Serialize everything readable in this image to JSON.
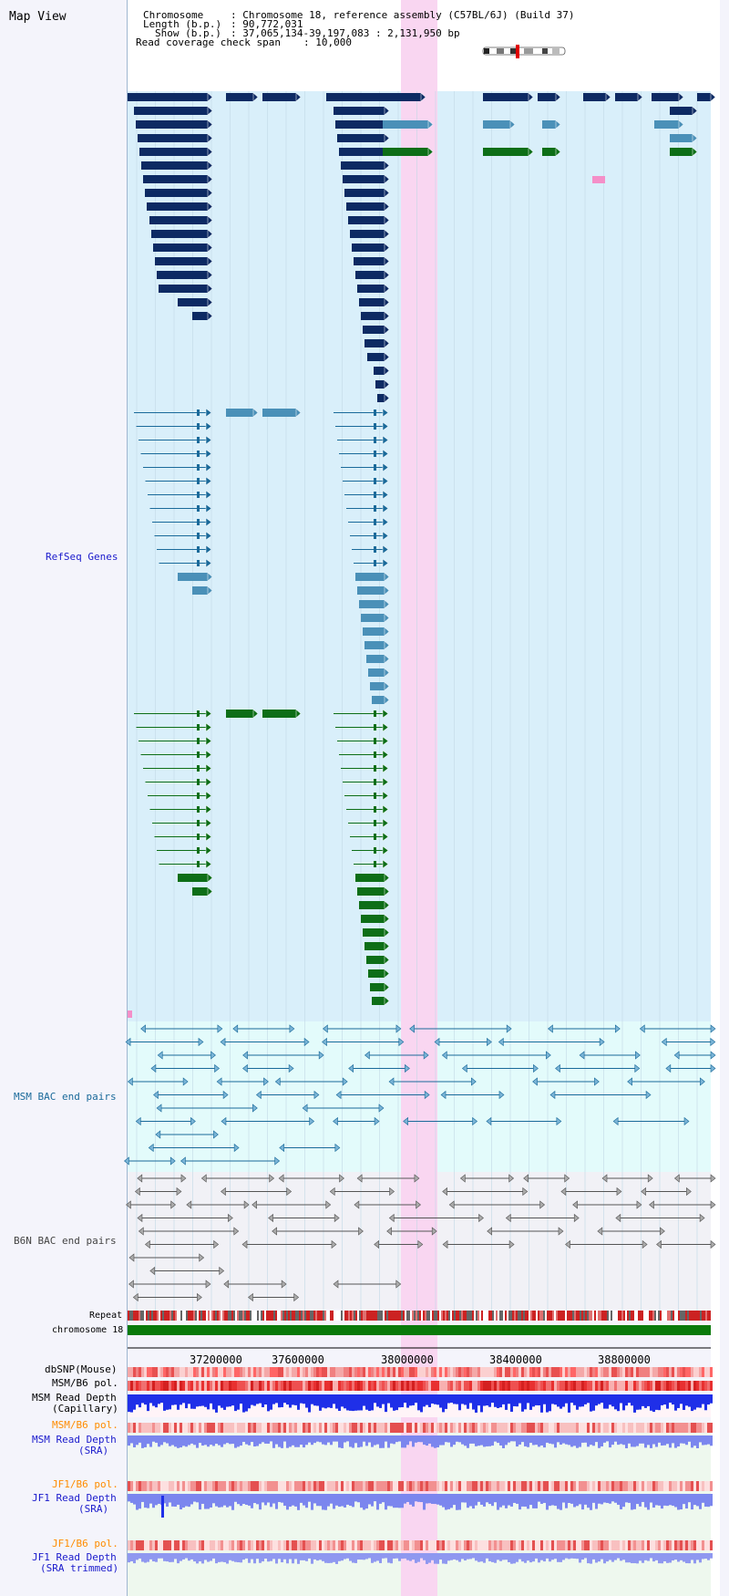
{
  "app": {
    "title": "Map View"
  },
  "header": {
    "chromosome_key": "Chromosome",
    "chromosome_value": ": Chromosome 18, reference assembly (C57BL/6J) (Build 37)",
    "length_key": "Length (b.p.)",
    "length_value": ": 90,772,031",
    "show_key": "Show (b.p.)",
    "show_value": ": 37,065,134-39,197,083 : 2,131,950 bp",
    "coverage_key": "Read coverage check span",
    "coverage_value": ": 10,000"
  },
  "tracks": {
    "refseq": "RefSeq Genes",
    "msm_bac": "MSM BAC end pairs",
    "b6n_bac": "B6N BAC end pairs",
    "repeat": "Repeat",
    "chrom": "chromosome 18",
    "dbsnp": "dbSNP(Mouse)",
    "msm_b6_pol_1": "MSM/B6 pol.",
    "msm_read_depth_cap_1": "MSM Read Depth",
    "msm_read_depth_cap_2": "(Capillary)",
    "msm_b6_pol_2": "MSM/B6 pol.",
    "msm_read_depth_sra_1": "MSM Read Depth",
    "msm_read_depth_sra_2": "(SRA)",
    "jf1_b6_pol_1": "JF1/B6 pol.",
    "jf1_read_depth_1": "JF1 Read Depth",
    "jf1_read_depth_2": "(SRA)",
    "jf1_b6_pol_2": "JF1/B6 pol.",
    "jf1_read_depth_trim_1": "JF1 Read Depth",
    "jf1_read_depth_trim_2": "(SRA trimmed)"
  },
  "axis": {
    "ticks": [
      "37200000",
      "37600000",
      "38000000",
      "38400000",
      "38800000"
    ]
  },
  "colors": {
    "gene_dark": "#0d2a63",
    "gene_mid": "#4a90b8",
    "gene_green": "#0d6e17",
    "highlight": "#f9d6f1",
    "msm_bg": "#e3fbfb",
    "gene_bg": "#d9effa",
    "label_blue": "#1a1acc",
    "label_orange": "#ff8c00"
  }
}
